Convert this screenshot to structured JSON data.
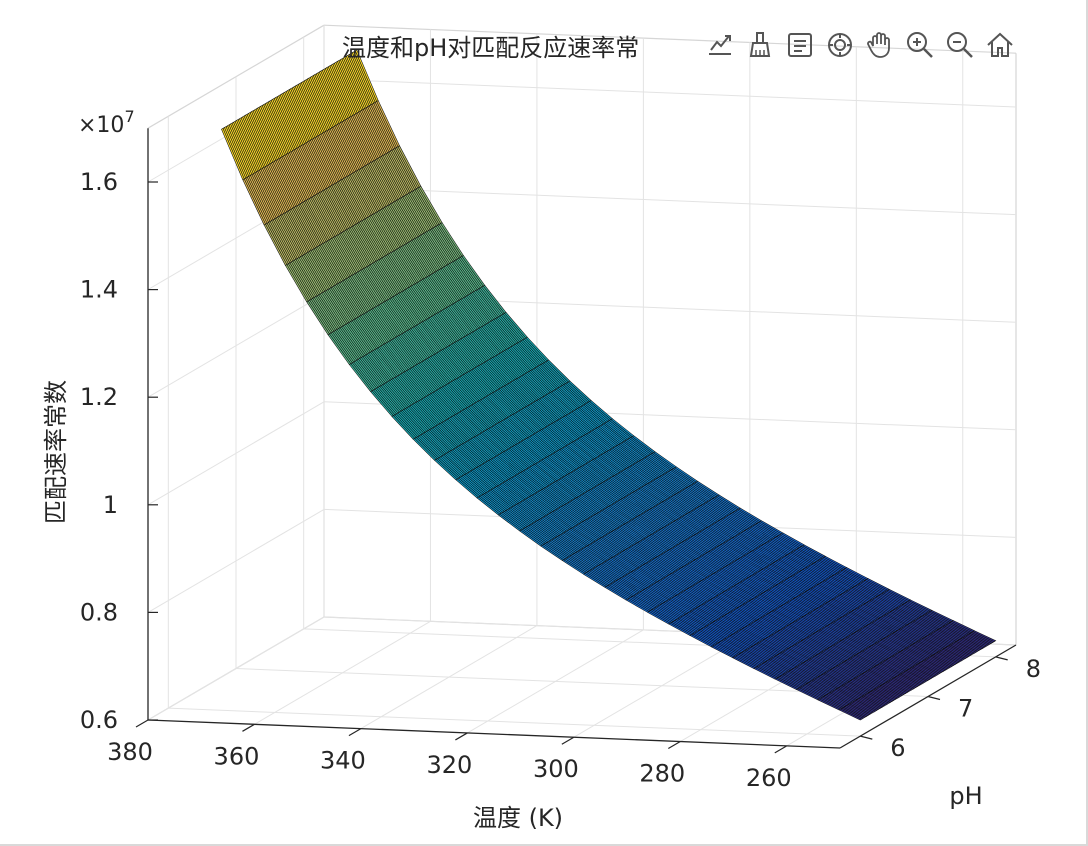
{
  "figure": {
    "title": "温度和pH对匹配反应速率常",
    "toolbar": {
      "items": [
        {
          "name": "export-icon"
        },
        {
          "name": "brush-icon"
        },
        {
          "name": "datatip-icon"
        },
        {
          "name": "rotate-3d-icon"
        },
        {
          "name": "pan-icon"
        },
        {
          "name": "zoom-in-icon"
        },
        {
          "name": "zoom-out-icon"
        },
        {
          "name": "home-icon"
        }
      ]
    }
  },
  "chart_data": {
    "type": "surface",
    "title": "温度和pH对匹配反应速率常",
    "xlabel": "温度 (K)",
    "ylabel": "pH",
    "zlabel": "匹配速率常数",
    "z_exponent_label": "×10",
    "z_exponent": "7",
    "x_ticks": [
      "260",
      "280",
      "300",
      "320",
      "340",
      "360",
      "380"
    ],
    "y_ticks": [
      "6",
      "7",
      "8"
    ],
    "z_ticks": [
      "0.6",
      "0.8",
      "1",
      "1.2",
      "1.4",
      "1.6"
    ],
    "xlim": [
      250,
      380
    ],
    "ylim": [
      5.7,
      8.3
    ],
    "zlim": [
      0.6,
      1.7
    ],
    "z_scale": 10000000,
    "temperature_range": [
      250,
      370
    ],
    "ph_range": [
      6,
      8
    ],
    "z_at_min_temperature": 0.63,
    "z_at_max_temperature": 1.68,
    "colormap": "parula",
    "grid": true,
    "grid_cells_temperature": 30,
    "grid_cells_ph": 90
  }
}
